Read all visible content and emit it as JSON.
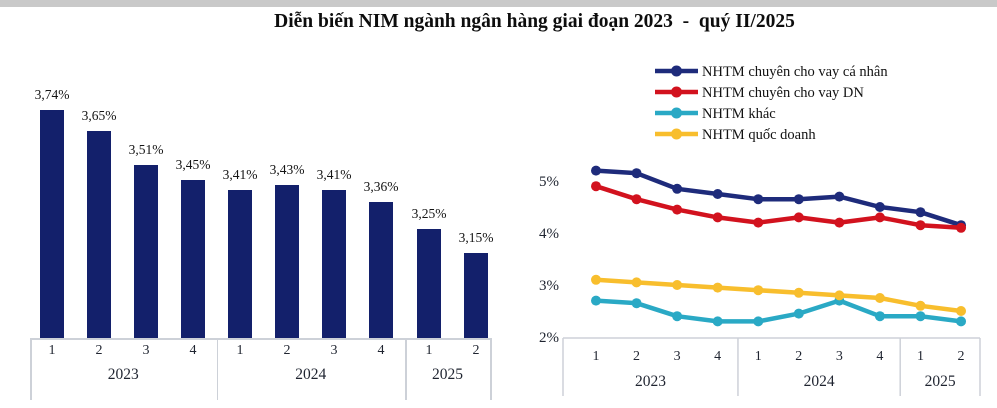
{
  "page": {
    "title": "Diễn biến NIM ngành ngân hàng giai đoạn 2023  -  quý II/2025"
  },
  "chart_data": [
    {
      "type": "bar",
      "description": "NIM by quarter",
      "categories_quarters": [
        "1",
        "2",
        "3",
        "4",
        "1",
        "2",
        "3",
        "4",
        "1",
        "2"
      ],
      "year_groups": [
        {
          "label": "2023",
          "span": 4
        },
        {
          "label": "2024",
          "span": 4
        },
        {
          "label": "2025",
          "span": 2
        }
      ],
      "values": [
        3.74,
        3.65,
        3.51,
        3.45,
        3.41,
        3.43,
        3.41,
        3.36,
        3.25,
        3.15
      ],
      "data_labels": [
        "3,74%",
        "3,65%",
        "3,51%",
        "3,45%",
        "3,41%",
        "3,43%",
        "3,41%",
        "3,36%",
        "3,25%",
        "3,15%"
      ],
      "ylim": [
        2.8,
        3.9
      ],
      "bar_color": "#13206B",
      "grid": false
    },
    {
      "type": "line",
      "description": "NIM by bank group",
      "categories_quarters": [
        "1",
        "2",
        "3",
        "4",
        "1",
        "2",
        "3",
        "4",
        "1",
        "2"
      ],
      "year_groups": [
        {
          "label": "2023",
          "span": 4
        },
        {
          "label": "2024",
          "span": 4
        },
        {
          "label": "2025",
          "span": 2
        }
      ],
      "yticks": [
        {
          "label": "5%",
          "value": 5
        },
        {
          "label": "4%",
          "value": 4
        },
        {
          "label": "3%",
          "value": 3
        },
        {
          "label": "2%",
          "value": 2
        }
      ],
      "ylim": [
        2,
        5.5
      ],
      "grid": false,
      "legend_position": "top",
      "series": [
        {
          "name": "NHTM chuyên cho vay cá nhân",
          "color": "#1E2B7B",
          "values": [
            5.2,
            5.15,
            4.85,
            4.75,
            4.65,
            4.65,
            4.7,
            4.5,
            4.4,
            4.15
          ]
        },
        {
          "name": "NHTM chuyên cho vay DN",
          "color": "#D2121E",
          "values": [
            4.9,
            4.65,
            4.45,
            4.3,
            4.2,
            4.3,
            4.2,
            4.3,
            4.15,
            4.1
          ]
        },
        {
          "name": "NHTM khác",
          "color": "#2AA9C5",
          "values": [
            2.7,
            2.65,
            2.4,
            2.3,
            2.3,
            2.45,
            2.7,
            2.4,
            2.4,
            2.3
          ]
        },
        {
          "name": "NHTM quốc doanh",
          "color": "#F8BE2D",
          "values": [
            3.1,
            3.05,
            3.0,
            2.95,
            2.9,
            2.85,
            2.8,
            2.75,
            2.6,
            2.5
          ]
        }
      ]
    }
  ]
}
